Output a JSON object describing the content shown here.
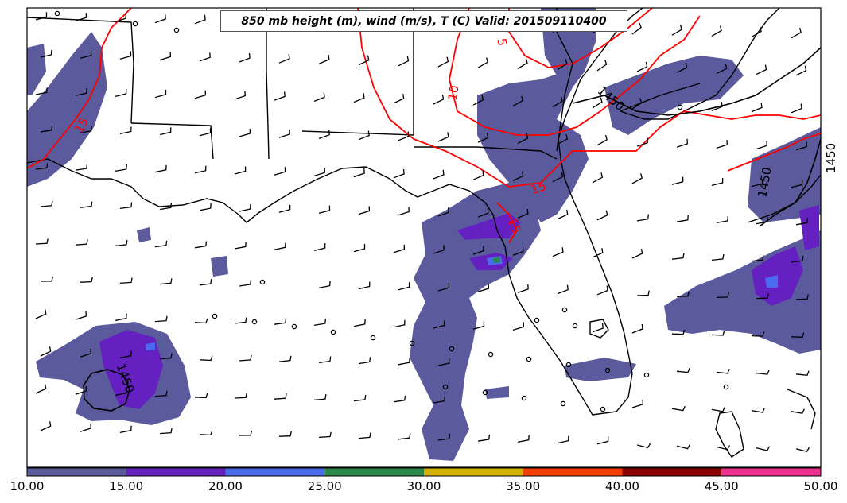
{
  "title": "850 mb height (m), wind (m/s), T (C) Valid: 201509110400",
  "colorbar": {
    "ticks": [
      "10.00",
      "15.00",
      "20.00",
      "25.00",
      "30.00",
      "35.00",
      "40.00",
      "45.00",
      "50.00"
    ],
    "colors": [
      "#5a5a9c",
      "#6420c0",
      "#4a6af0",
      "#2a8a4a",
      "#d4b000",
      "#f04000",
      "#8c0000",
      "#ee3090"
    ]
  },
  "temperature_contours": {
    "color": "#ff0000",
    "labels": [
      "15",
      "10",
      "5",
      "15",
      "15"
    ]
  },
  "height_contours": {
    "color": "#000000",
    "labels": [
      "1450",
      "1450",
      "1450",
      "1450"
    ]
  },
  "wind_field": {
    "symbol": "wind-barb",
    "calm_symbol": "calm-circle"
  }
}
